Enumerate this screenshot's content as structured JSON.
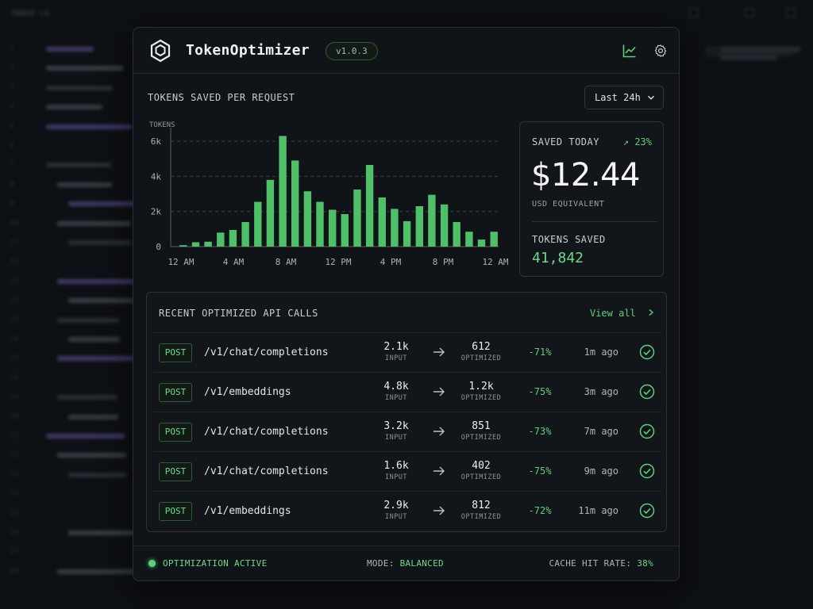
{
  "background": {
    "editor_title": "ONBRE LD",
    "line_numbers": [
      "1",
      "2",
      "3",
      "4",
      "5",
      "6",
      "7",
      "8",
      "9",
      "10",
      "11",
      "12",
      "13",
      "14",
      "15",
      "16",
      "17",
      "18",
      "19",
      "20",
      "21",
      "22",
      "23",
      "24",
      "25",
      "26",
      "27",
      "28"
    ]
  },
  "header": {
    "title": "TokenOptimizer",
    "version": "v1.0.3",
    "icons": [
      "analytics-icon",
      "gear-icon"
    ]
  },
  "chart_section": {
    "title": "TOKENS SAVED PER REQUEST",
    "range": "Last 24h"
  },
  "chart_data": {
    "type": "bar",
    "ylabel": "TOKENS",
    "yticks": [
      "0",
      "2k",
      "4k",
      "6k"
    ],
    "ylim": [
      0,
      6500
    ],
    "xticks": [
      "12 AM",
      "4 AM",
      "8 AM",
      "12 PM",
      "4 PM",
      "8 PM",
      "12 AM"
    ],
    "values": [
      80,
      250,
      280,
      800,
      950,
      1400,
      2550,
      3800,
      6300,
      4900,
      3150,
      2550,
      2100,
      1850,
      3250,
      4650,
      2800,
      2150,
      1450,
      2300,
      2950,
      2400,
      1400,
      850,
      400,
      850
    ],
    "color": "#4fbf6a",
    "grid": true
  },
  "saved_card": {
    "label": "SAVED TODAY",
    "delta": "↗ 23%",
    "amount": "$12.44",
    "sub": "USD EQUIVALENT",
    "tokens_label": "TOKENS SAVED",
    "tokens_value": "41,842"
  },
  "calls": {
    "title": "RECENT OPTIMIZED API CALLS",
    "view_all": "View all",
    "input_caption": "INPUT",
    "optimized_caption": "OPTIMIZED",
    "rows": [
      {
        "method": "POST",
        "path": "/v1/chat/completions",
        "input": "2.1k",
        "optimized": "612",
        "pct": "-71%",
        "ago": "1m ago"
      },
      {
        "method": "POST",
        "path": "/v1/embeddings",
        "input": "4.8k",
        "optimized": "1.2k",
        "pct": "-75%",
        "ago": "3m ago"
      },
      {
        "method": "POST",
        "path": "/v1/chat/completions",
        "input": "3.2k",
        "optimized": "851",
        "pct": "-73%",
        "ago": "7m ago"
      },
      {
        "method": "POST",
        "path": "/v1/chat/completions",
        "input": "1.6k",
        "optimized": "402",
        "pct": "-75%",
        "ago": "9m ago"
      },
      {
        "method": "POST",
        "path": "/v1/embeddings",
        "input": "2.9k",
        "optimized": "812",
        "pct": "-72%",
        "ago": "11m ago"
      }
    ]
  },
  "footer": {
    "status": "OPTIMIZATION ACTIVE",
    "mode_label": "MODE:",
    "mode_value": "BALANCED",
    "cache_label": "CACHE HIT RATE:",
    "cache_value": "38%"
  },
  "colors": {
    "accent": "#5fcf7c",
    "bar": "#4fbf6a",
    "panel": "#101317"
  }
}
